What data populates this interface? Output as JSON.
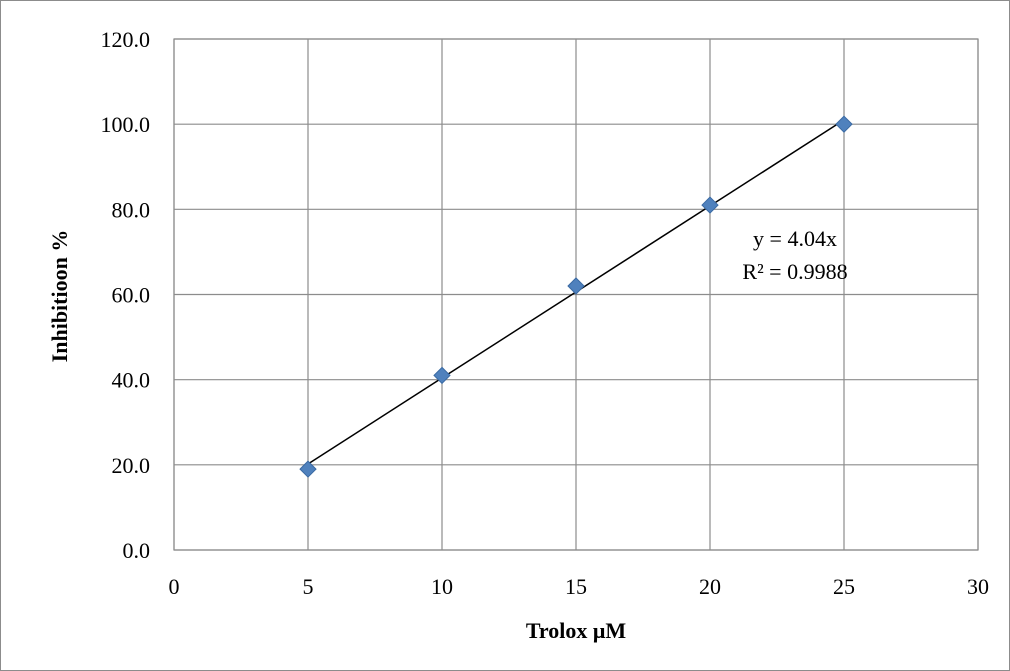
{
  "chart_data": {
    "type": "scatter",
    "title": "",
    "xlabel": "Trolox μM",
    "ylabel": "Inhibitioon %",
    "xlim": [
      0,
      30
    ],
    "ylim": [
      0,
      120
    ],
    "x_ticks": [
      0,
      5,
      10,
      15,
      20,
      25,
      30
    ],
    "y_ticks": [
      0,
      20,
      40,
      60,
      80,
      100,
      120
    ],
    "x_tick_labels": [
      "0",
      "5",
      "10",
      "15",
      "20",
      "25",
      "30"
    ],
    "y_tick_labels": [
      "0.0",
      "20.0",
      "40.0",
      "60.0",
      "80.0",
      "100.0",
      "120.0"
    ],
    "grid": true,
    "legend": "none",
    "series": [
      {
        "marker": "diamond",
        "color": "#4f81bd",
        "x": [
          5,
          10,
          15,
          20,
          25
        ],
        "y": [
          19,
          41,
          62,
          81,
          100
        ]
      }
    ],
    "trendline": {
      "type": "linear",
      "slope": 4.04,
      "intercept": 0,
      "x_range": [
        5,
        25
      ],
      "color": "#000000",
      "equation_label": "y = 4.04x",
      "r2_label": "R² = 0.9988"
    },
    "gridline_color": "#8c8c8c",
    "axis_color": "#8c8c8c"
  }
}
